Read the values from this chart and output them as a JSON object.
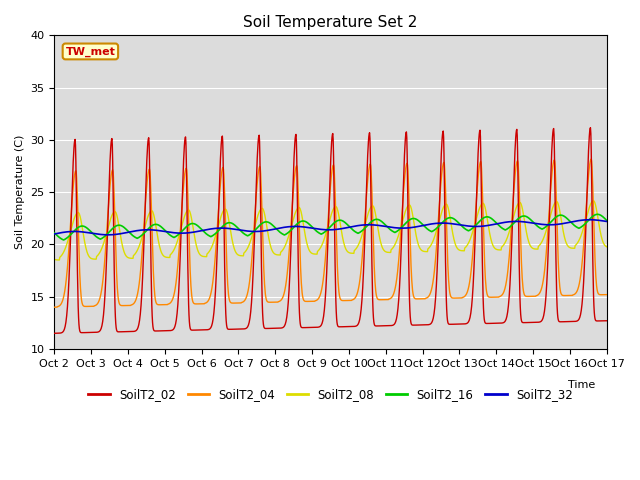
{
  "title": "Soil Temperature Set 2",
  "xlabel": "Time",
  "ylabel": "Soil Temperature (C)",
  "ylim": [
    10,
    40
  ],
  "xlim_days": [
    0,
    15
  ],
  "x_tick_labels": [
    "Oct 2",
    "Oct 3",
    "Oct 4",
    "Oct 5",
    "Oct 6",
    "Oct 7",
    "Oct 8",
    "Oct 9",
    "Oct 10",
    "Oct 11",
    "Oct 12",
    "Oct 13",
    "Oct 14",
    "Oct 15",
    "Oct 16",
    "Oct 17"
  ],
  "series": {
    "SoilT2_02": {
      "color": "#cc0000",
      "lw": 1.0
    },
    "SoilT2_04": {
      "color": "#ff8800",
      "lw": 1.0
    },
    "SoilT2_08": {
      "color": "#dddd00",
      "lw": 1.0
    },
    "SoilT2_16": {
      "color": "#00cc00",
      "lw": 1.2
    },
    "SoilT2_32": {
      "color": "#0000cc",
      "lw": 1.2
    }
  },
  "annotation_text": "TW_met",
  "background_color": "#dcdcdc",
  "fig_background": "#ffffff",
  "grid_color": "#ffffff",
  "base_temp": 21.0,
  "trend_per_day": 0.08
}
